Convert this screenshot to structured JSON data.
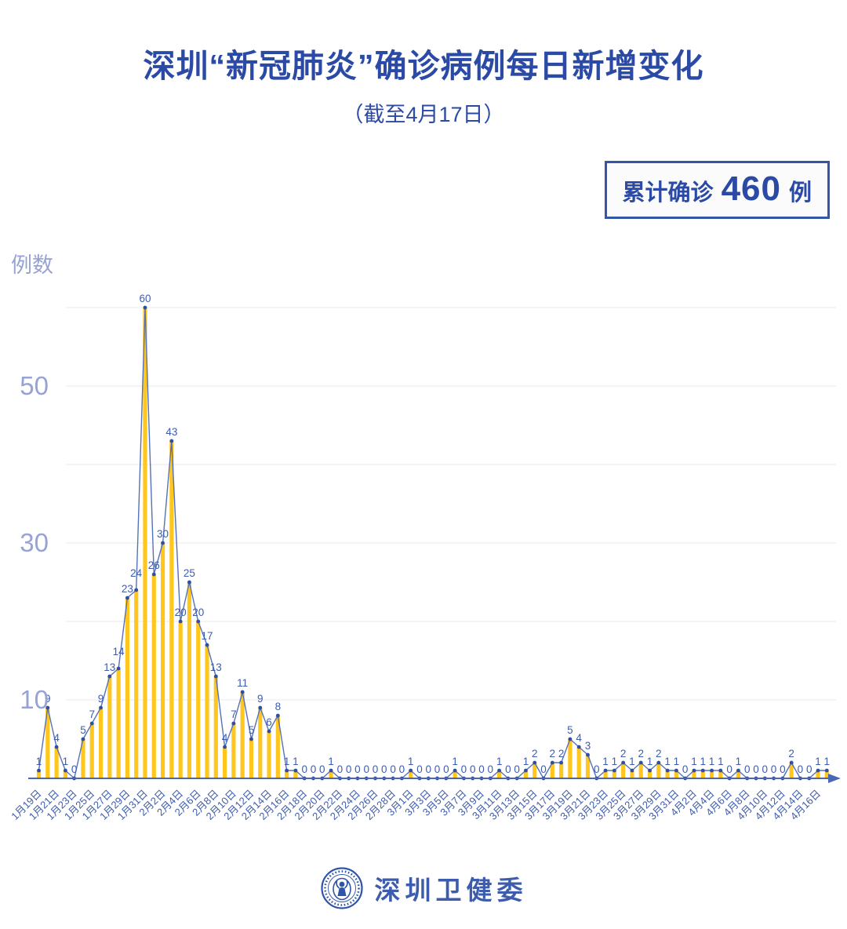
{
  "header": {
    "title": "深圳“新冠肺炎”确诊病例每日新增变化",
    "subtitle": "（截至4月17日）"
  },
  "summary_badge": {
    "prefix": "累计确诊",
    "value": "460",
    "suffix": "例"
  },
  "chart_data": {
    "type": "bar",
    "title": "深圳新冠肺炎确诊病例每日新增变化（截至4月17日）",
    "ylabel": "例数",
    "xlabel": "",
    "ylim": [
      0,
      62
    ],
    "yticks": [
      50,
      30,
      10
    ],
    "gridline_values": [
      10,
      20,
      30,
      40,
      50,
      60
    ],
    "grid": "on",
    "x_label_interval": 2,
    "categories": [
      "1月19日",
      "1月20日",
      "1月21日",
      "1月22日",
      "1月23日",
      "1月24日",
      "1月25日",
      "1月26日",
      "1月27日",
      "1月28日",
      "1月29日",
      "1月30日",
      "1月31日",
      "2月1日",
      "2月2日",
      "2月3日",
      "2月4日",
      "2月5日",
      "2月6日",
      "2月7日",
      "2月8日",
      "2月9日",
      "2月10日",
      "2月11日",
      "2月12日",
      "2月13日",
      "2月14日",
      "2月15日",
      "2月16日",
      "2月17日",
      "2月18日",
      "2月19日",
      "2月20日",
      "2月21日",
      "2月22日",
      "2月23日",
      "2月24日",
      "2月25日",
      "2月26日",
      "2月27日",
      "2月28日",
      "2月29日",
      "3月1日",
      "3月2日",
      "3月3日",
      "3月4日",
      "3月5日",
      "3月6日",
      "3月7日",
      "3月8日",
      "3月9日",
      "3月10日",
      "3月11日",
      "3月12日",
      "3月13日",
      "3月14日",
      "3月15日",
      "3月16日",
      "3月17日",
      "3月18日",
      "3月19日",
      "3月20日",
      "3月21日",
      "3月22日",
      "3月23日",
      "3月24日",
      "3月25日",
      "3月26日",
      "3月27日",
      "3月28日",
      "3月29日",
      "3月30日",
      "3月31日",
      "4月1日",
      "4月2日",
      "4月3日",
      "4月4日",
      "4月5日",
      "4月6日",
      "4月7日",
      "4月8日",
      "4月9日",
      "4月10日",
      "4月11日",
      "4月12日",
      "4月13日",
      "4月14日",
      "4月15日",
      "4月16日",
      "4月17日"
    ],
    "values": [
      1,
      9,
      4,
      1,
      0,
      5,
      7,
      9,
      13,
      14,
      23,
      24,
      60,
      26,
      30,
      43,
      20,
      25,
      20,
      17,
      13,
      4,
      7,
      11,
      5,
      9,
      6,
      8,
      1,
      1,
      0,
      0,
      0,
      1,
      0,
      0,
      0,
      0,
      0,
      0,
      0,
      0,
      1,
      0,
      0,
      0,
      0,
      1,
      0,
      0,
      0,
      0,
      1,
      0,
      0,
      1,
      2,
      0,
      2,
      2,
      5,
      4,
      3,
      0,
      1,
      1,
      2,
      1,
      2,
      1,
      2,
      1,
      1,
      0,
      1,
      1,
      1,
      1,
      0,
      1,
      0,
      0,
      0,
      0,
      0,
      2,
      0,
      0,
      1,
      1
    ],
    "total": 460,
    "colors": {
      "title": "#2B4AA6",
      "label": "#3D5CAD",
      "bar": "#FFC71E",
      "line": "#5571B8",
      "marker": "#2F4FA5",
      "grid": "#E9E9EF",
      "axis": "#4A67B4",
      "axis_light": "#97A3D4",
      "badge_border": "#3456A8",
      "badge_bg": "#FBFBFB"
    }
  },
  "footer": {
    "org": "深圳卫健委",
    "logo": "shenzhen-health-commission-seal"
  }
}
